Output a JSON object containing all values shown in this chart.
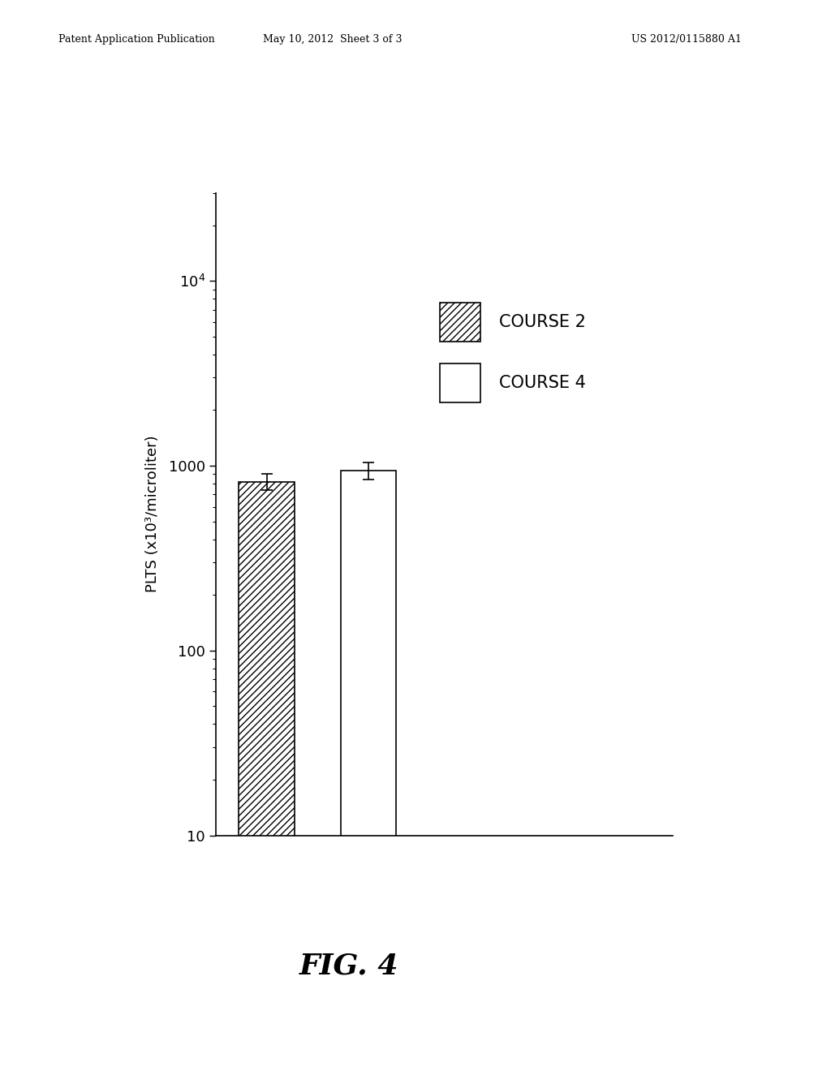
{
  "bar_values": [
    820,
    940
  ],
  "bar_errors": [
    80,
    100
  ],
  "bar_labels": [
    "COURSE 2",
    "COURSE 4"
  ],
  "bar_positions": [
    1,
    2
  ],
  "bar_width": 0.55,
  "hatch_patterns": [
    "////",
    ""
  ],
  "ylabel": "PLTS (x10³/microliter)",
  "ylim": [
    10,
    30000
  ],
  "yticks": [
    10,
    100,
    1000,
    10000
  ],
  "background_color": "#ffffff",
  "header_left": "Patent Application Publication",
  "header_center": "May 10, 2012  Sheet 3 of 3",
  "header_right": "US 2012/0115880 A1",
  "figure_label": "FIG. 4",
  "header_fontsize": 9,
  "axis_fontsize": 13,
  "legend_fontsize": 15,
  "figure_label_fontsize": 26,
  "tick_fontsize": 13
}
